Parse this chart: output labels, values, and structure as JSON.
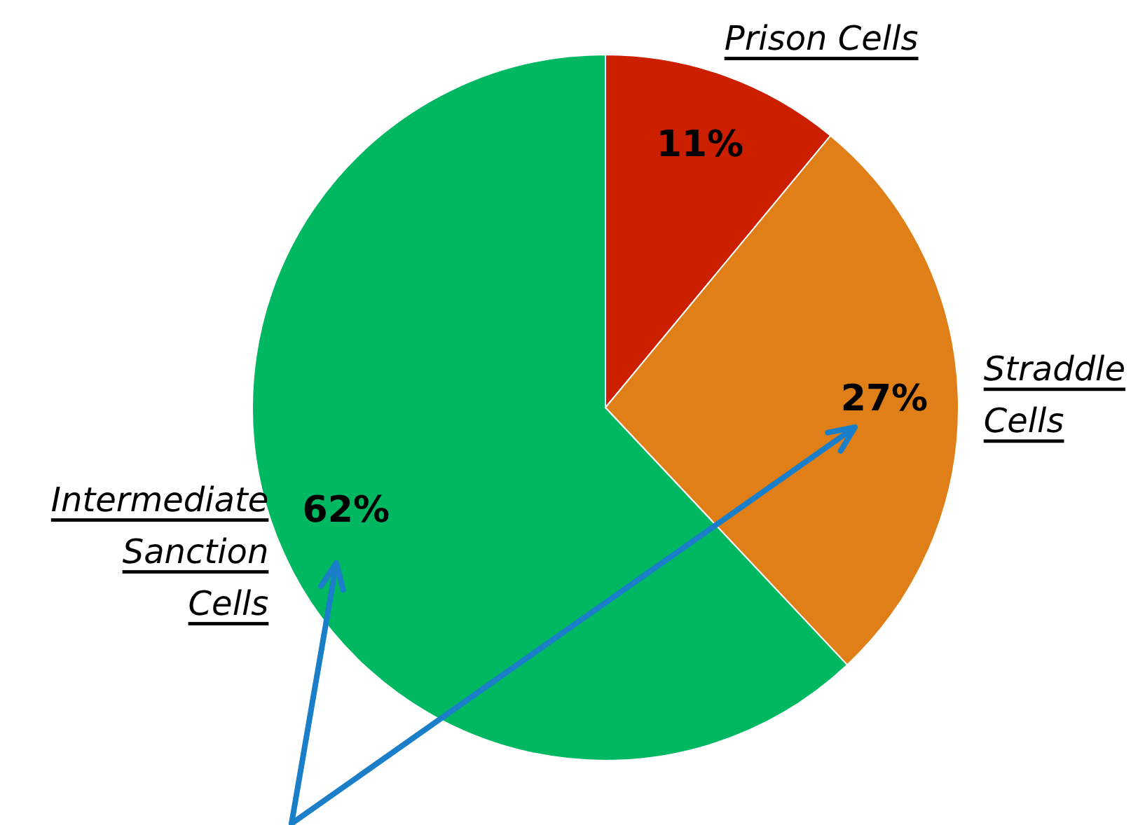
{
  "chart_data": {
    "type": "pie",
    "categories": [
      "Prison Cells",
      "Straddle Cells",
      "Intermediate Sanction Cells"
    ],
    "values": [
      11,
      27,
      62
    ],
    "colors": [
      "#cc1f00",
      "#e07f17",
      "#00b862"
    ],
    "value_labels": [
      "11%",
      "27%",
      "62%"
    ]
  }
}
